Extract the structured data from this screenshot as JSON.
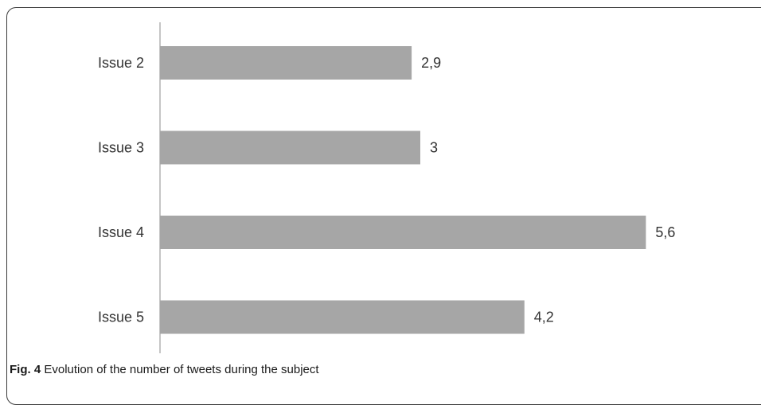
{
  "caption": {
    "label": "Fig. 4",
    "text": "Evolution of the number of tweets during the subject"
  },
  "chart_data": {
    "type": "bar",
    "orientation": "horizontal",
    "categories": [
      "Issue 2",
      "Issue 3",
      "Issue 4",
      "Issue 5"
    ],
    "values": [
      2.9,
      3,
      5.6,
      4.2
    ],
    "value_labels": [
      "2,9",
      "3",
      "5,6",
      "4,2"
    ],
    "bar_color": "#a6a6a6",
    "axis_color": "#b3b3b3",
    "grid": false,
    "legend": "none"
  }
}
